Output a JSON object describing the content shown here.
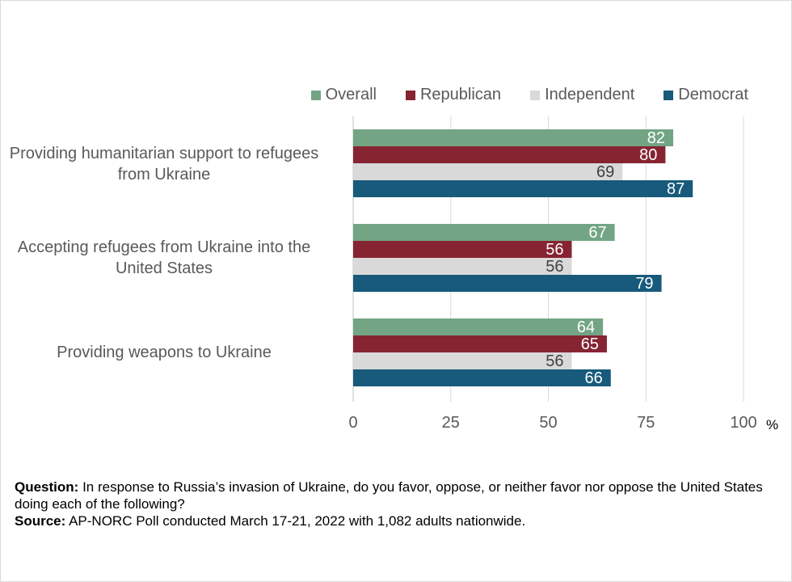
{
  "chart_data": {
    "type": "bar",
    "orientation": "horizontal",
    "categories": [
      "Providing humanitarian support to refugees from Ukraine",
      "Accepting refugees from Ukraine into the United States",
      "Providing weapons to Ukraine"
    ],
    "series": [
      {
        "name": "Overall",
        "color": "#73a585",
        "values": [
          82,
          67,
          64
        ]
      },
      {
        "name": "Republican",
        "color": "#862432",
        "values": [
          80,
          56,
          65
        ]
      },
      {
        "name": "Independent",
        "color": "#d9d9d9",
        "values": [
          69,
          56,
          56
        ]
      },
      {
        "name": "Democrat",
        "color": "#175a7b",
        "values": [
          87,
          79,
          66
        ]
      }
    ],
    "xlim": [
      0,
      100
    ],
    "xticks": [
      0,
      25,
      50,
      75,
      100
    ],
    "xunit": "%",
    "grid": true,
    "legend_position": "top-right"
  },
  "labels": {
    "cat0_line1": "Providing humanitarian support to refugees",
    "cat0_line2": "from Ukraine",
    "cat1_line1": "Accepting refugees from Ukraine into the",
    "cat1_line2": "United States",
    "cat2_line1": "Providing weapons to Ukraine"
  },
  "footer": {
    "question_label": "Question:",
    "question_text": "In response to Russia’s invasion of Ukraine, do you favor, oppose, or neither favor nor oppose the United States doing each of the following?",
    "source_label": "Source:",
    "source_text": "AP-NORC Poll conducted March 17-21, 2022 with 1,082 adults nationwide."
  }
}
